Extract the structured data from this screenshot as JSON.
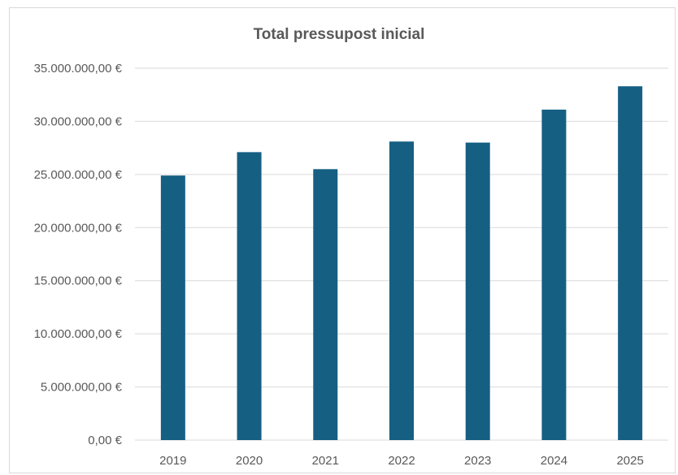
{
  "colors": {
    "bar": "#155f83",
    "grid": "#d9d9d9",
    "text": "#595959"
  },
  "chart_data": {
    "type": "bar",
    "title": "Total pressupost inicial",
    "xlabel": "",
    "ylabel": "",
    "categories": [
      "2019",
      "2020",
      "2021",
      "2022",
      "2023",
      "2024",
      "2025"
    ],
    "values": [
      24900000,
      27100000,
      25500000,
      28100000,
      28000000,
      31100000,
      33300000
    ],
    "ylim": [
      0,
      35000000
    ],
    "yticks": [
      0,
      5000000,
      10000000,
      15000000,
      20000000,
      25000000,
      30000000,
      35000000
    ],
    "ytick_labels": [
      "0,00 €",
      "5.000.000,00 €",
      "10.000.000,00 €",
      "15.000.000,00 €",
      "20.000.000,00 €",
      "25.000.000,00 €",
      "30.000.000,00 €",
      "35.000.000,00 €"
    ],
    "grid": true,
    "legend": "none"
  }
}
